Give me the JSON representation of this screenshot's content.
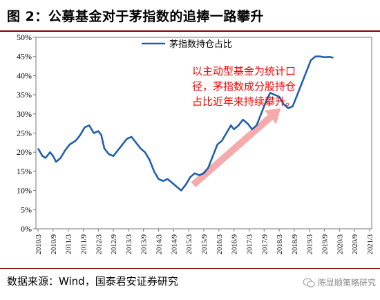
{
  "figure_title": "图 2：公募基金对于茅指数的追捧一路攀升",
  "source_text": "数据来源：Wind，国泰君安证券研究",
  "watermark_text": "陈显顺策略研究",
  "annotation": {
    "lines": [
      "以主动型基金为统计口",
      "径，茅指数成分股持仓",
      "占比近年来持续攀升。"
    ],
    "color": "#FF0000"
  },
  "arrow_color": "#F4A6A6",
  "chart_data": {
    "type": "line",
    "x_labels": [
      "2010/3",
      "2010/9",
      "2011/3",
      "2011/9",
      "2012/3",
      "2012/9",
      "2013/3",
      "2013/9",
      "2014/3",
      "2014/9",
      "2015/3",
      "2015/9",
      "2016/3",
      "2016/9",
      "2017/3",
      "2017/9",
      "2018/3",
      "2018/9",
      "2019/3",
      "2019/9",
      "2020/3",
      "2020/9",
      "2021/3"
    ],
    "y_ticks": [
      "0%",
      "5%",
      "10%",
      "15%",
      "20%",
      "25%",
      "30%",
      "35%",
      "40%",
      "45%",
      "50%"
    ],
    "ylim": [
      0,
      50
    ],
    "legend_position": "top-center",
    "series": [
      {
        "name": "茅指数持仓占比",
        "color": "#1F5FAD",
        "points": [
          [
            0.0,
            21.0
          ],
          [
            0.3,
            19.0
          ],
          [
            0.5,
            18.5
          ],
          [
            0.8,
            20.0
          ],
          [
            1.0,
            19.0
          ],
          [
            1.2,
            17.5
          ],
          [
            1.5,
            18.5
          ],
          [
            1.8,
            20.5
          ],
          [
            2.1,
            22.0
          ],
          [
            2.5,
            23.0
          ],
          [
            2.8,
            24.5
          ],
          [
            3.1,
            26.5
          ],
          [
            3.4,
            27.0
          ],
          [
            3.7,
            25.0
          ],
          [
            4.0,
            25.5
          ],
          [
            4.2,
            24.5
          ],
          [
            4.4,
            21.0
          ],
          [
            4.7,
            19.5
          ],
          [
            5.0,
            19.0
          ],
          [
            5.3,
            20.5
          ],
          [
            5.6,
            22.0
          ],
          [
            5.9,
            23.5
          ],
          [
            6.2,
            24.0
          ],
          [
            6.5,
            22.5
          ],
          [
            6.8,
            21.0
          ],
          [
            7.1,
            20.0
          ],
          [
            7.4,
            18.0
          ],
          [
            7.7,
            15.0
          ],
          [
            8.0,
            13.0
          ],
          [
            8.3,
            12.5
          ],
          [
            8.6,
            13.0
          ],
          [
            8.9,
            12.0
          ],
          [
            9.2,
            11.0
          ],
          [
            9.5,
            10.0
          ],
          [
            9.8,
            11.5
          ],
          [
            10.1,
            13.5
          ],
          [
            10.4,
            14.5
          ],
          [
            10.7,
            14.0
          ],
          [
            11.0,
            14.5
          ],
          [
            11.3,
            16.0
          ],
          [
            11.6,
            19.0
          ],
          [
            11.9,
            22.0
          ],
          [
            12.2,
            23.0
          ],
          [
            12.5,
            25.0
          ],
          [
            12.8,
            27.0
          ],
          [
            13.0,
            26.0
          ],
          [
            13.3,
            27.0
          ],
          [
            13.6,
            28.5
          ],
          [
            13.9,
            27.5
          ],
          [
            14.2,
            26.0
          ],
          [
            14.5,
            27.0
          ],
          [
            14.8,
            30.0
          ],
          [
            15.1,
            33.0
          ],
          [
            15.4,
            35.5
          ],
          [
            15.7,
            35.0
          ],
          [
            16.0,
            34.5
          ],
          [
            16.3,
            32.5
          ],
          [
            16.6,
            31.5
          ],
          [
            16.9,
            32.0
          ],
          [
            17.2,
            35.0
          ],
          [
            17.5,
            38.0
          ],
          [
            17.8,
            41.0
          ],
          [
            18.1,
            44.0
          ],
          [
            18.4,
            45.0
          ],
          [
            18.7,
            45.0
          ],
          [
            19.0,
            44.8
          ],
          [
            19.3,
            44.9
          ],
          [
            19.6,
            44.7
          ]
        ]
      }
    ]
  }
}
